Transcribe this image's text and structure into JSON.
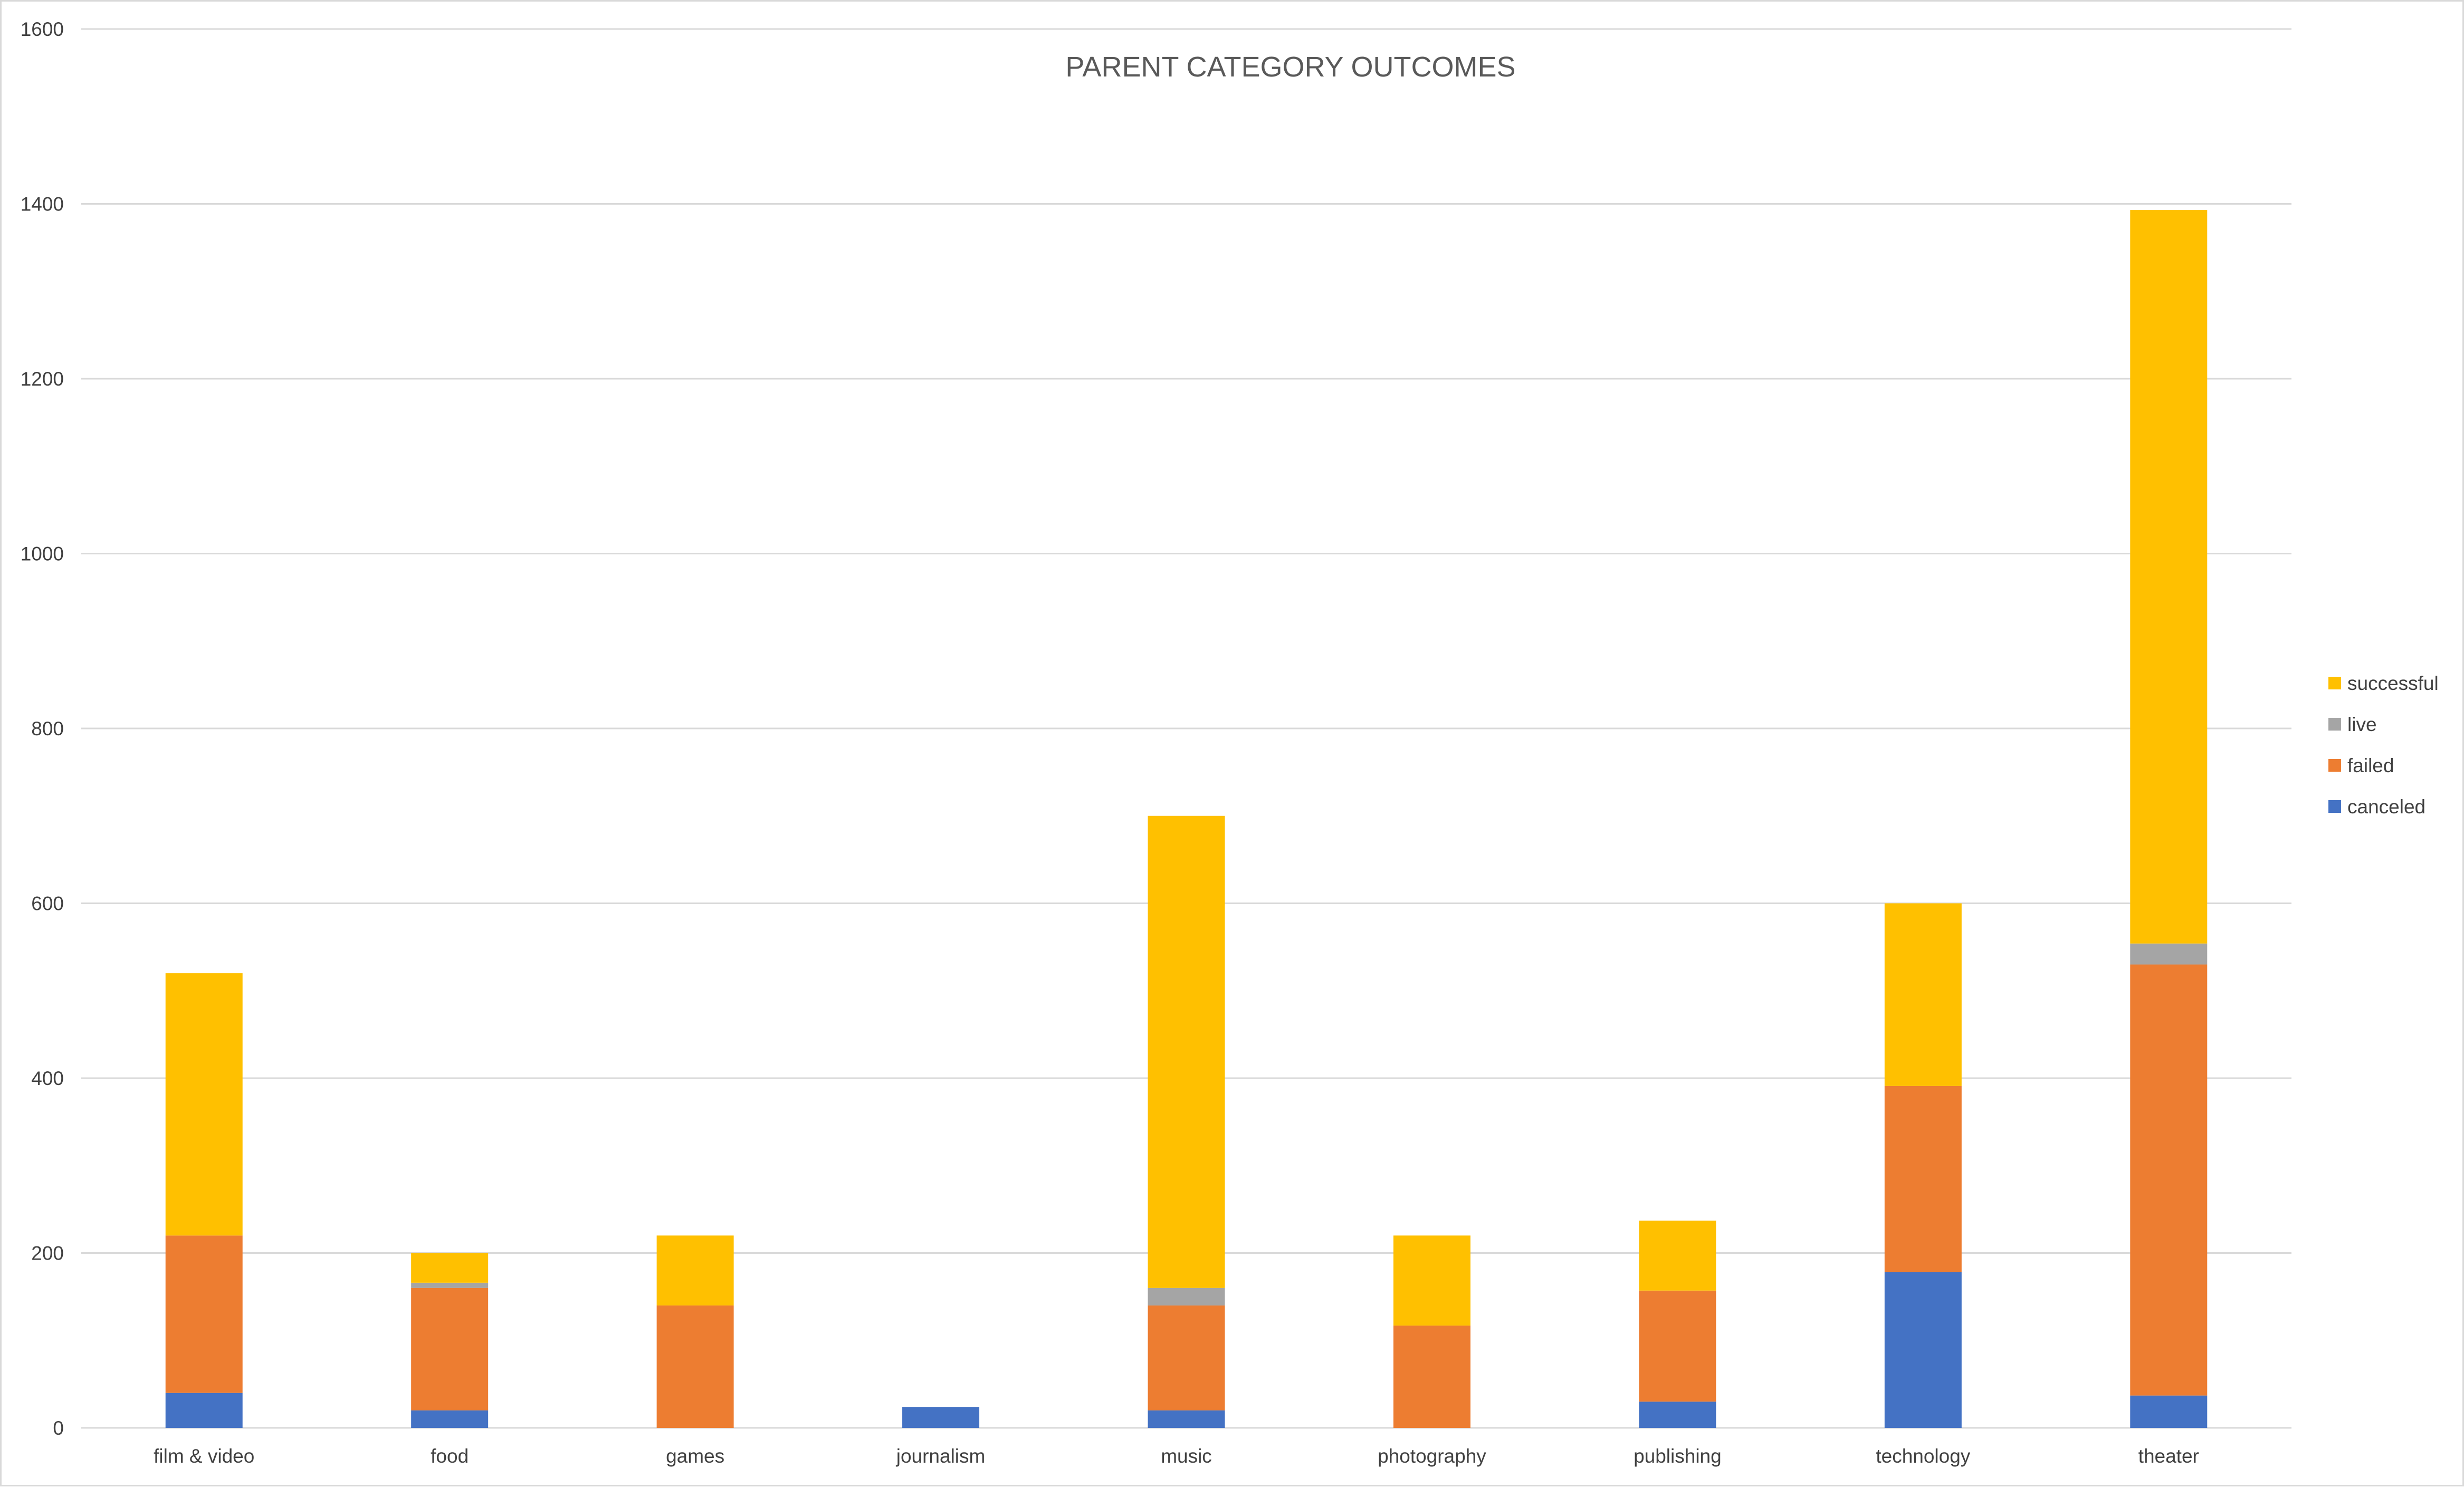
{
  "chart_data": {
    "type": "bar",
    "stacked": true,
    "title": "PARENT CATEGORY OUTCOMES",
    "xlabel": "",
    "ylabel": "",
    "ylim": [
      0,
      1600
    ],
    "yticks": [
      0,
      200,
      400,
      600,
      800,
      1000,
      1200,
      1400,
      1600
    ],
    "grid": true,
    "legend_position": "right",
    "categories": [
      "film & video",
      "food",
      "games",
      "journalism",
      "music",
      "photography",
      "publishing",
      "technology",
      "theater"
    ],
    "series": [
      {
        "name": "canceled",
        "color": "#4472C4",
        "values": [
          40,
          20,
          0,
          24,
          20,
          0,
          30,
          178,
          37
        ]
      },
      {
        "name": "failed",
        "color": "#ED7D31",
        "values": [
          180,
          140,
          140,
          0,
          120,
          117,
          127,
          213,
          493
        ]
      },
      {
        "name": "live",
        "color": "#A5A5A5",
        "values": [
          0,
          6,
          0,
          0,
          20,
          0,
          0,
          0,
          24
        ]
      },
      {
        "name": "successful",
        "color": "#FFC000",
        "values": [
          300,
          34,
          80,
          0,
          540,
          103,
          80,
          209,
          839
        ]
      }
    ],
    "legend_order": [
      "successful",
      "live",
      "failed",
      "canceled"
    ]
  }
}
